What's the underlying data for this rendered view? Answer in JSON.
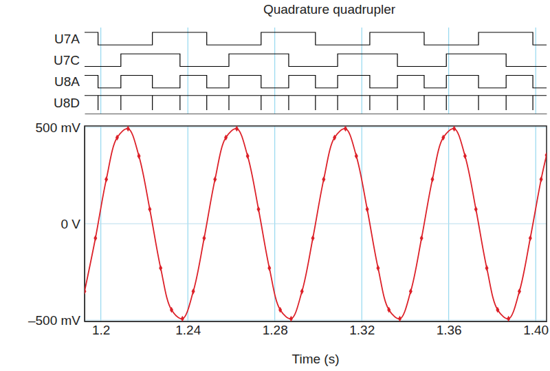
{
  "chart_data": [
    {
      "type": "step",
      "title": "Quadrature quadrupler",
      "xlim": [
        1.1925,
        1.405
      ],
      "xticks": [
        1.2,
        1.24,
        1.28,
        1.32,
        1.36,
        {
          "value": 1.4,
          "label": "1.40"
        }
      ],
      "grid": true,
      "tick_labels": false,
      "series": [
        {
          "name": "U7A",
          "type": "step",
          "color": "#000000",
          "x": [
            1.1925,
            1.1987,
            1.2237,
            1.2487,
            1.2737,
            1.2987,
            1.3237,
            1.3487,
            1.3737,
            1.3987,
            1.405
          ],
          "values": [
            1,
            0,
            1,
            0,
            1,
            0,
            1,
            0,
            1,
            0,
            0
          ]
        },
        {
          "name": "U7C",
          "type": "step",
          "color": "#000000",
          "x": [
            1.1925,
            1.2092,
            1.2364,
            1.2589,
            1.2864,
            1.3089,
            1.3364,
            1.3589,
            1.3864,
            1.405
          ],
          "values": [
            0,
            1,
            0,
            1,
            0,
            1,
            0,
            1,
            0,
            0
          ]
        },
        {
          "name": "U8A",
          "type": "step",
          "color": "#000000",
          "x": [
            1.1925,
            1.1987,
            1.2092,
            1.2237,
            1.2364,
            1.2487,
            1.2589,
            1.2737,
            1.2864,
            1.2987,
            1.3089,
            1.3237,
            1.3364,
            1.3487,
            1.3589,
            1.3737,
            1.3864,
            1.3987,
            1.405
          ],
          "values": [
            1,
            0,
            1,
            0,
            1,
            0,
            1,
            0,
            1,
            0,
            1,
            0,
            1,
            0,
            1,
            0,
            1,
            0,
            0
          ]
        },
        {
          "name": "U8D",
          "type": "impulse",
          "color": "#000000",
          "x": [
            1.1987,
            1.2092,
            1.2237,
            1.2364,
            1.2487,
            1.2589,
            1.2737,
            1.2864,
            1.2987,
            1.3089,
            1.3237,
            1.3364,
            1.3487,
            1.3589,
            1.3737,
            1.3864,
            1.3987
          ],
          "values": [
            1,
            1,
            1,
            1,
            1,
            1,
            1,
            1,
            1,
            1,
            1,
            1,
            1,
            1,
            1,
            1,
            1
          ]
        }
      ]
    },
    {
      "type": "line",
      "xlabel": "Time (s)",
      "xlim": [
        1.1925,
        1.405
      ],
      "xticks": [
        1.2,
        1.24,
        1.28,
        1.32,
        1.36,
        {
          "value": 1.4,
          "label": "1.40"
        }
      ],
      "ylim": [
        -0.507,
        0.507
      ],
      "yticks": [
        {
          "value": 0.5,
          "label": "500 mV"
        },
        {
          "value": 0,
          "label": "0 V"
        },
        {
          "value": -0.5,
          "label": "–500 mV"
        }
      ],
      "grid": true,
      "series": [
        {
          "color": "#dc2028",
          "marker": "diamond",
          "line_style": "solid",
          "x": [
            1.1925,
            1.1975,
            1.2025,
            1.2075,
            1.2125,
            1.2175,
            1.2225,
            1.2275,
            1.2325,
            1.2375,
            1.2425,
            1.2475,
            1.2525,
            1.2575,
            1.2625,
            1.2675,
            1.2725,
            1.2775,
            1.2825,
            1.2875,
            1.2925,
            1.2975,
            1.3025,
            1.3075,
            1.3125,
            1.3175,
            1.3225,
            1.3275,
            1.3325,
            1.3375,
            1.3425,
            1.3475,
            1.3525,
            1.3575,
            1.3625,
            1.3675,
            1.3725,
            1.3775,
            1.3825,
            1.3875,
            1.3925,
            1.3975,
            1.4025,
            1.405
          ],
          "values": [
            -0.351,
            -0.075,
            0.23,
            0.447,
            0.493,
            0.351,
            0.075,
            -0.23,
            -0.447,
            -0.493,
            -0.351,
            -0.075,
            0.23,
            0.447,
            0.493,
            0.351,
            0.075,
            -0.23,
            -0.447,
            -0.493,
            -0.351,
            -0.075,
            0.23,
            0.447,
            0.493,
            0.351,
            0.075,
            -0.23,
            -0.447,
            -0.493,
            -0.351,
            -0.075,
            0.23,
            0.447,
            0.493,
            0.351,
            0.075,
            -0.23,
            -0.447,
            -0.493,
            -0.351,
            -0.075,
            0.23,
            0.356
          ]
        }
      ]
    }
  ]
}
